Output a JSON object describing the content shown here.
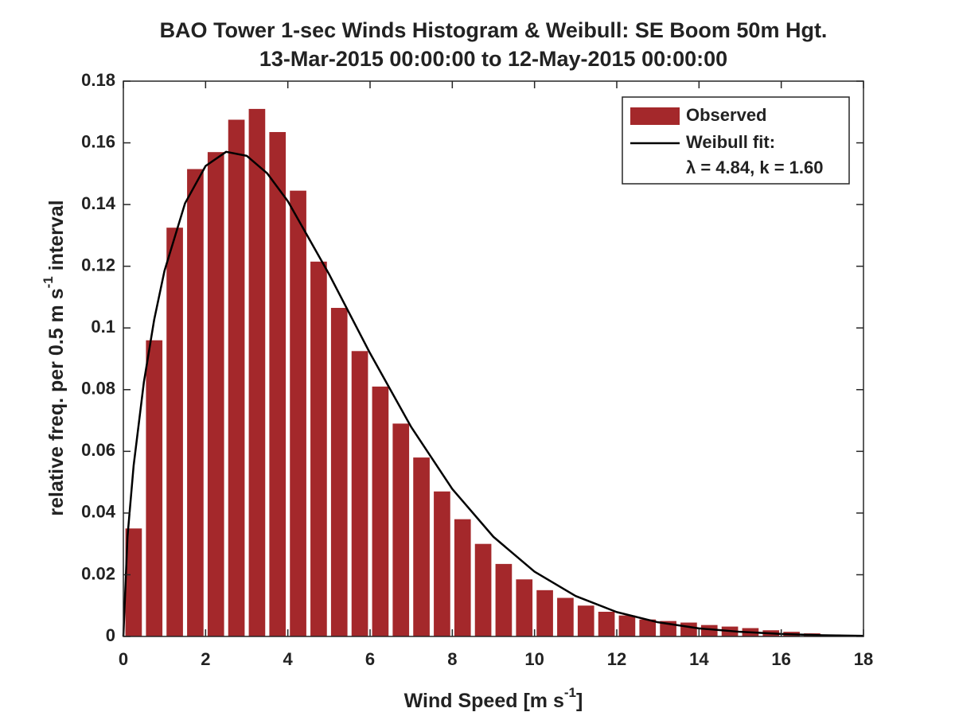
{
  "chart_data": {
    "type": "bar",
    "title": "BAO Tower 1-sec Winds Histogram & Weibull: SE Boom 50m Hgt.",
    "subtitle": "13-Mar-2015 00:00:00 to 12-May-2015 00:00:00",
    "xlabel": {
      "text": "Wind Speed [m s",
      "sup": "-1",
      "tail": "]"
    },
    "ylabel": {
      "text": "relative freq. per 0.5 m s",
      "sup": "-1",
      "tail": " interval"
    },
    "xlim": [
      0,
      18
    ],
    "xticks": [
      0,
      2,
      4,
      6,
      8,
      10,
      12,
      14,
      16,
      18
    ],
    "ylim": [
      0,
      0.18
    ],
    "yticks": [
      0,
      0.02,
      0.04,
      0.06,
      0.08,
      0.1,
      0.12,
      0.14,
      0.16,
      0.18
    ],
    "grid": false,
    "legend": "top-right",
    "series": [
      {
        "name": "Observed",
        "type": "bar",
        "color": "#a4282b",
        "x": [
          0.25,
          0.75,
          1.25,
          1.75,
          2.25,
          2.75,
          3.25,
          3.75,
          4.25,
          4.75,
          5.25,
          5.75,
          6.25,
          6.75,
          7.25,
          7.75,
          8.25,
          8.75,
          9.25,
          9.75,
          10.25,
          10.75,
          11.25,
          11.75,
          12.25,
          12.75,
          13.25,
          13.75,
          14.25,
          14.75,
          15.25,
          15.75,
          16.25,
          16.75,
          17.25,
          17.75
        ],
        "values": [
          0.035,
          0.096,
          0.1325,
          0.1515,
          0.157,
          0.1675,
          0.171,
          0.1635,
          0.1445,
          0.1215,
          0.1065,
          0.0925,
          0.081,
          0.069,
          0.058,
          0.047,
          0.038,
          0.03,
          0.0235,
          0.0185,
          0.015,
          0.0125,
          0.01,
          0.008,
          0.0068,
          0.0055,
          0.005,
          0.0045,
          0.0037,
          0.0032,
          0.0027,
          0.002,
          0.0015,
          0.001,
          0.0006,
          0.0003
        ]
      },
      {
        "name": "Weibull fit:",
        "parameters": "λ = 4.84, k = 1.60",
        "type": "line",
        "color": "#000000",
        "x": [
          0,
          0.1,
          0.25,
          0.5,
          0.75,
          1,
          1.5,
          2,
          2.5,
          3,
          3.5,
          4,
          5,
          6,
          7,
          8,
          9,
          10,
          11,
          12,
          13,
          14,
          15,
          16,
          17,
          18
        ],
        "values": [
          0,
          0.0322,
          0.0554,
          0.0825,
          0.1027,
          0.1185,
          0.1404,
          0.1525,
          0.1571,
          0.1558,
          0.1501,
          0.1411,
          0.1175,
          0.0918,
          0.0679,
          0.0478,
          0.0323,
          0.021,
          0.0131,
          0.0079,
          0.0046,
          0.0026,
          0.0015,
          0.0008,
          0.0004,
          0.0002
        ]
      }
    ]
  }
}
